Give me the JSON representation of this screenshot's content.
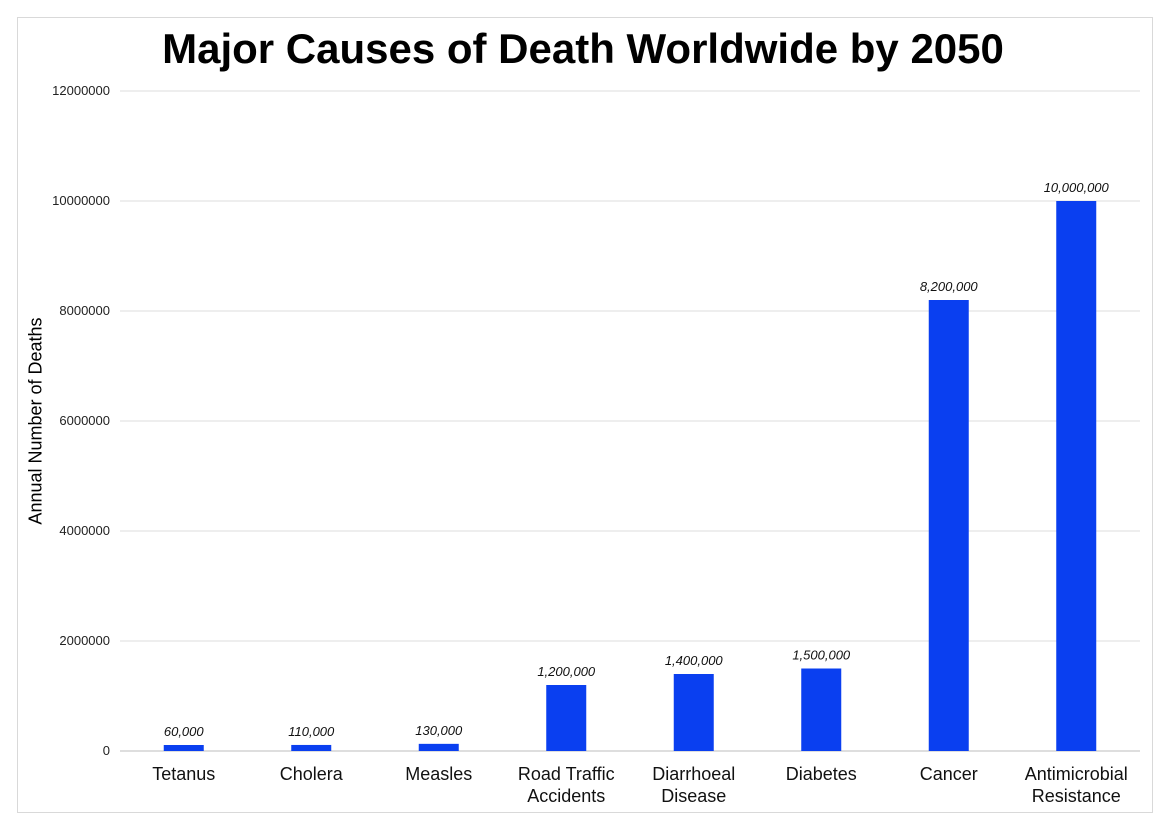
{
  "chart_data": {
    "type": "bar",
    "title": "Major Causes of Death Worldwide by 2050",
    "xlabel": "",
    "ylabel": "Annual Number of Deaths",
    "categories": [
      [
        "Tetanus"
      ],
      [
        "Cholera"
      ],
      [
        "Measles"
      ],
      [
        "Road Traffic",
        "Accidents"
      ],
      [
        "Diarrhoeal",
        "Disease"
      ],
      [
        "Diabetes"
      ],
      [
        "Cancer"
      ],
      [
        "Antimicrobial",
        "Resistance"
      ]
    ],
    "values": [
      60000,
      110000,
      130000,
      1200000,
      1400000,
      1500000,
      8200000,
      10000000
    ],
    "value_labels": [
      "60,000",
      "110,000",
      "130,000",
      "1,200,000",
      "1,400,000",
      "1,500,000",
      "8,200,000",
      "10,000,000"
    ],
    "ylim": [
      0,
      12000000
    ],
    "yticks": [
      0,
      2000000,
      4000000,
      6000000,
      8000000,
      10000000,
      12000000
    ],
    "ytick_labels": [
      "0",
      "2000000",
      "4000000",
      "6000000",
      "8000000",
      "10000000",
      "12000000"
    ],
    "grid": true,
    "legend": "none",
    "bar_color": "#0a3ff0",
    "grid_color": "#dedede"
  }
}
